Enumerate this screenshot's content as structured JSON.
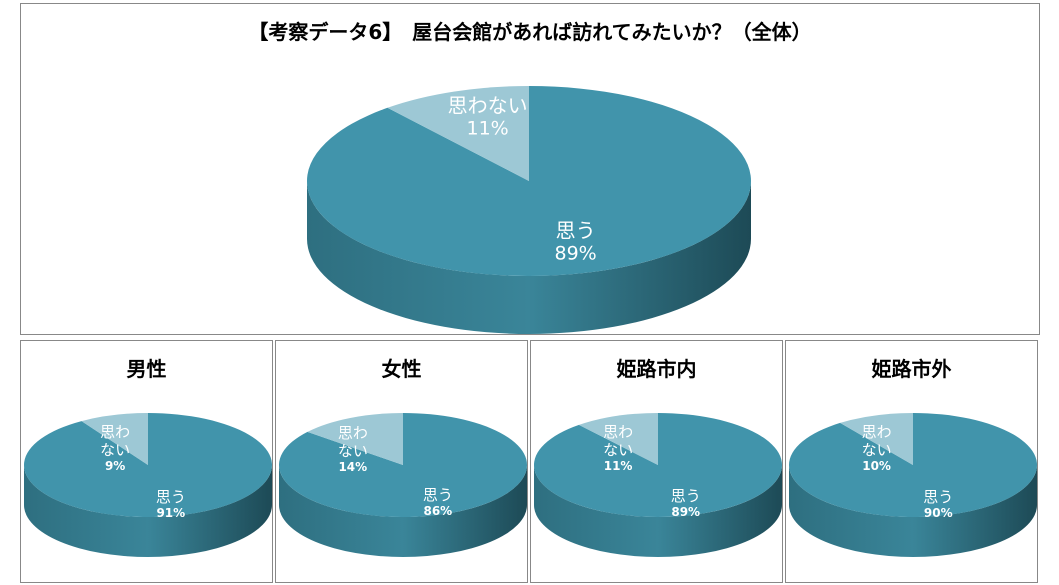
{
  "chart_data": [
    {
      "type": "pie",
      "title": "【考察データ6】　屋台会館があれば訪れてみたいか？（全体）",
      "categories": [
        "思う",
        "思わない"
      ],
      "values": [
        89,
        11
      ],
      "value_labels": [
        "89%",
        "11%"
      ],
      "colors": [
        "#4194ab",
        "#9dc8d5"
      ]
    },
    {
      "type": "pie",
      "title": "男性",
      "categories": [
        "思う",
        "思わない"
      ],
      "values": [
        91,
        9
      ],
      "value_labels": [
        "91%",
        "9%"
      ],
      "colors": [
        "#4194ab",
        "#9dc8d5"
      ]
    },
    {
      "type": "pie",
      "title": "女性",
      "categories": [
        "思う",
        "思わない"
      ],
      "values": [
        86,
        14
      ],
      "value_labels": [
        "86%",
        "14%"
      ],
      "colors": [
        "#4194ab",
        "#9dc8d5"
      ]
    },
    {
      "type": "pie",
      "title": "姫路市内",
      "categories": [
        "思う",
        "思わない"
      ],
      "values": [
        89,
        11
      ],
      "value_labels": [
        "89%",
        "11%"
      ],
      "colors": [
        "#4194ab",
        "#9dc8d5"
      ]
    },
    {
      "type": "pie",
      "title": "姫路市外",
      "categories": [
        "思う",
        "思わない"
      ],
      "values": [
        90,
        10
      ],
      "value_labels": [
        "90%",
        "10%"
      ],
      "colors": [
        "#4194ab",
        "#9dc8d5"
      ]
    }
  ]
}
